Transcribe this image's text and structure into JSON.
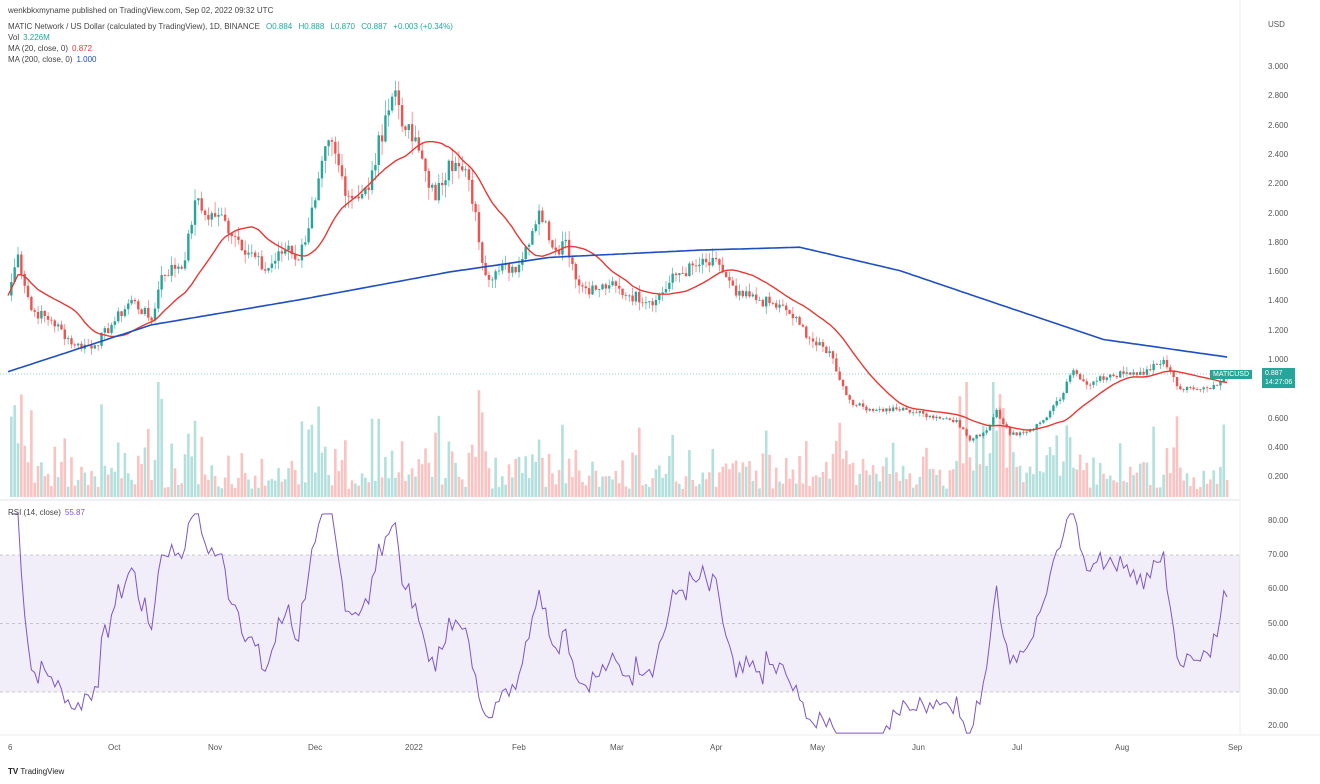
{
  "header": {
    "publisher": "wenkbkxmyname published on TradingView.com, Sep 02, 2022 09:32 UTC",
    "symbol": "MATIC Network / US Dollar (calculated by TradingView), 1D, BINANCE",
    "open": "O0.884",
    "high": "H0.888",
    "low": "L0.870",
    "close": "C0.887",
    "change": "+0.003 (+0.34%)",
    "vol_label": "Vol",
    "vol_value": "3.226M",
    "ma20_label": "MA (20, close, 0)",
    "ma20_value": "0.872",
    "ma200_label": "MA (200, close, 0)",
    "ma200_value": "1.000"
  },
  "price_axis": {
    "currency": "USD",
    "ticks": [
      "3.000",
      "2.800",
      "2.600",
      "2.400",
      "2.200",
      "2.000",
      "1.800",
      "1.600",
      "1.400",
      "1.200",
      "1.000",
      "0.600",
      "0.400",
      "0.200"
    ]
  },
  "last_price": {
    "symbol": "MATICUSD",
    "price": "0.887",
    "countdown": "14:27:06"
  },
  "rsi": {
    "label": "RSI (14, close)",
    "value": "55.87",
    "ticks": [
      "80.00",
      "70.00",
      "60.00",
      "50.00",
      "40.00",
      "30.00",
      "20.00"
    ],
    "band": [
      30,
      70
    ]
  },
  "time_axis": [
    "6",
    "Oct",
    "Nov",
    "Dec",
    "2022",
    "Feb",
    "Mar",
    "Apr",
    "May",
    "Jun",
    "Jul",
    "Aug",
    "Sep"
  ],
  "footer": {
    "brand": "TradingView"
  },
  "colors": {
    "up": "#26a69a",
    "down": "#ef5350",
    "ma20": "#e53935",
    "ma200": "#1e4fc2",
    "rsi": "#7e57c2"
  },
  "chart_data": {
    "type": "candlestick",
    "start_date": "2021-09-01",
    "ylim": [
      0.0,
      3.1
    ],
    "closes": [
      [
        "2021-09-01",
        1.44
      ],
      [
        "2021-09-04",
        1.72
      ],
      [
        "2021-09-08",
        1.34
      ],
      [
        "2021-09-14",
        1.27
      ],
      [
        "2021-09-21",
        1.1
      ],
      [
        "2021-09-27",
        1.1
      ],
      [
        "2021-10-02",
        1.24
      ],
      [
        "2021-10-08",
        1.41
      ],
      [
        "2021-10-14",
        1.27
      ],
      [
        "2021-10-17",
        1.58
      ],
      [
        "2021-10-24",
        1.68
      ],
      [
        "2021-10-27",
        2.09
      ],
      [
        "2021-10-30",
        1.99
      ],
      [
        "2021-11-03",
        1.99
      ],
      [
        "2021-11-09",
        1.82
      ],
      [
        "2021-11-17",
        1.61
      ],
      [
        "2021-11-24",
        1.78
      ],
      [
        "2021-11-27",
        1.68
      ],
      [
        "2021-12-02",
        2.09
      ],
      [
        "2021-12-06",
        2.5
      ],
      [
        "2021-12-12",
        2.12
      ],
      [
        "2021-12-18",
        2.16
      ],
      [
        "2021-12-23",
        2.67
      ],
      [
        "2021-12-26",
        2.84
      ],
      [
        "2021-12-29",
        2.57
      ],
      [
        "2022-01-02",
        2.43
      ],
      [
        "2022-01-07",
        2.09
      ],
      [
        "2022-01-11",
        2.36
      ],
      [
        "2022-01-17",
        2.23
      ],
      [
        "2022-01-22",
        1.58
      ],
      [
        "2022-01-26",
        1.61
      ],
      [
        "2022-02-01",
        1.65
      ],
      [
        "2022-02-07",
        2.02
      ],
      [
        "2022-02-12",
        1.75
      ],
      [
        "2022-02-15",
        1.82
      ],
      [
        "2022-02-19",
        1.51
      ],
      [
        "2022-02-24",
        1.48
      ],
      [
        "2022-02-28",
        1.51
      ],
      [
        "2022-03-06",
        1.44
      ],
      [
        "2022-03-14",
        1.41
      ],
      [
        "2022-03-20",
        1.58
      ],
      [
        "2022-03-27",
        1.65
      ],
      [
        "2022-04-02",
        1.65
      ],
      [
        "2022-04-07",
        1.44
      ],
      [
        "2022-04-14",
        1.41
      ],
      [
        "2022-04-22",
        1.34
      ],
      [
        "2022-04-26",
        1.24
      ],
      [
        "2022-05-01",
        1.1
      ],
      [
        "2022-05-05",
        1.06
      ],
      [
        "2022-05-10",
        0.76
      ],
      [
        "2022-05-13",
        0.69
      ],
      [
        "2022-05-19",
        0.66
      ],
      [
        "2022-05-28",
        0.66
      ],
      [
        "2022-06-04",
        0.62
      ],
      [
        "2022-06-12",
        0.59
      ],
      [
        "2022-06-16",
        0.45
      ],
      [
        "2022-06-21",
        0.52
      ],
      [
        "2022-06-24",
        0.66
      ],
      [
        "2022-06-28",
        0.49
      ],
      [
        "2022-07-04",
        0.52
      ],
      [
        "2022-07-08",
        0.59
      ],
      [
        "2022-07-13",
        0.73
      ],
      [
        "2022-07-17",
        0.93
      ],
      [
        "2022-07-22",
        0.83
      ],
      [
        "2022-07-28",
        0.9
      ],
      [
        "2022-08-03",
        0.9
      ],
      [
        "2022-08-09",
        0.93
      ],
      [
        "2022-08-13",
        1.0
      ],
      [
        "2022-08-18",
        0.8
      ],
      [
        "2022-08-24",
        0.8
      ],
      [
        "2022-08-28",
        0.83
      ],
      [
        "2022-09-01",
        0.887
      ]
    ],
    "ma200": [
      [
        "2021-09-01",
        0.92
      ],
      [
        "2021-10-14",
        1.24
      ],
      [
        "2021-11-27",
        1.41
      ],
      [
        "2022-01-11",
        1.6
      ],
      [
        "2022-02-10",
        1.7
      ],
      [
        "2022-03-27",
        1.75
      ],
      [
        "2022-04-26",
        1.77
      ],
      [
        "2022-05-26",
        1.61
      ],
      [
        "2022-06-26",
        1.37
      ],
      [
        "2022-07-26",
        1.14
      ],
      [
        "2022-09-01",
        1.02
      ]
    ]
  }
}
